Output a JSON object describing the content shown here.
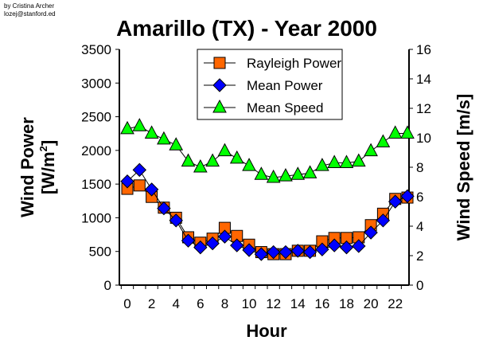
{
  "credit": {
    "line1": "by Cristina Archer",
    "line2": "lozej@stanford.ed"
  },
  "chart_data": {
    "type": "line",
    "title": "Amarillo (TX) - Year 2000",
    "xlabel": "Hour",
    "ylabel": "Wind Power [W/m2]",
    "ylabel_line1": "Wind Power",
    "ylabel_line2": "[W/m",
    "ylabel_sup": "2",
    "ylabel_end": "]",
    "y2label": "Wind Speed [m/s]",
    "xlim": [
      0,
      23
    ],
    "ylim": [
      0,
      3500
    ],
    "y2lim": [
      0,
      16
    ],
    "xticks": [
      0,
      2,
      4,
      6,
      8,
      10,
      12,
      14,
      16,
      18,
      20,
      22
    ],
    "yticks": [
      0,
      500,
      1000,
      1500,
      2000,
      2500,
      3000,
      3500
    ],
    "y2ticks": [
      0,
      2,
      4,
      6,
      8,
      10,
      12,
      14,
      16
    ],
    "legend_position": "top-center",
    "x": [
      0,
      1,
      2,
      3,
      4,
      5,
      6,
      7,
      8,
      9,
      10,
      11,
      12,
      13,
      14,
      15,
      16,
      17,
      18,
      19,
      20,
      21,
      22,
      23
    ],
    "series": [
      {
        "name": "Rayleigh Power",
        "axis": "left",
        "marker": "square",
        "color": "#ff6600",
        "values": [
          1430,
          1480,
          1310,
          1150,
          1000,
          710,
          630,
          690,
          850,
          730,
          600,
          490,
          460,
          460,
          510,
          510,
          650,
          700,
          700,
          710,
          890,
          1060,
          1280,
          1300
        ]
      },
      {
        "name": "Mean Power",
        "axis": "left",
        "marker": "diamond",
        "color": "#0000ff",
        "values": [
          1540,
          1710,
          1420,
          1140,
          960,
          660,
          560,
          620,
          720,
          590,
          520,
          460,
          490,
          490,
          510,
          490,
          530,
          590,
          560,
          580,
          780,
          960,
          1240,
          1320
        ]
      },
      {
        "name": "Mean Speed",
        "axis": "right",
        "marker": "triangle",
        "color": "#00ff00",
        "values": [
          10.6,
          10.8,
          10.3,
          9.9,
          9.5,
          8.4,
          8.0,
          8.4,
          9.1,
          8.6,
          8.1,
          7.5,
          7.3,
          7.4,
          7.5,
          7.6,
          8.1,
          8.3,
          8.3,
          8.4,
          9.1,
          9.7,
          10.3,
          10.3
        ]
      }
    ]
  }
}
